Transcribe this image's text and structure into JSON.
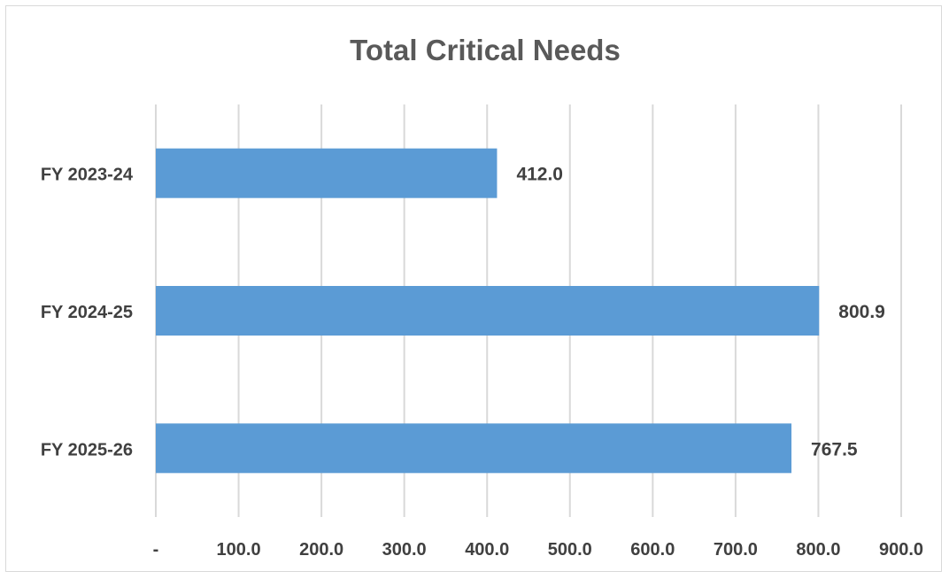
{
  "chart_data": {
    "type": "bar",
    "orientation": "horizontal",
    "title": "Total Critical Needs",
    "categories": [
      "FY 2023-24",
      "FY 2024-25",
      "FY 2025-26"
    ],
    "values": [
      412.0,
      800.9,
      767.5
    ],
    "data_labels": [
      "412.0",
      "800.9",
      "767.5"
    ],
    "xlim": [
      0,
      900
    ],
    "x_ticks": [
      0,
      100,
      200,
      300,
      400,
      500,
      600,
      700,
      800,
      900
    ],
    "x_tick_labels": [
      "-",
      "100.0",
      "200.0",
      "300.0",
      "400.0",
      "500.0",
      "600.0",
      "700.0",
      "800.0",
      "900.0"
    ],
    "grid": "vertical",
    "legend": "none",
    "colors": {
      "bar": "#5b9bd5",
      "grid": "#d9d9d9",
      "text": "#404040",
      "title": "#595959"
    }
  }
}
